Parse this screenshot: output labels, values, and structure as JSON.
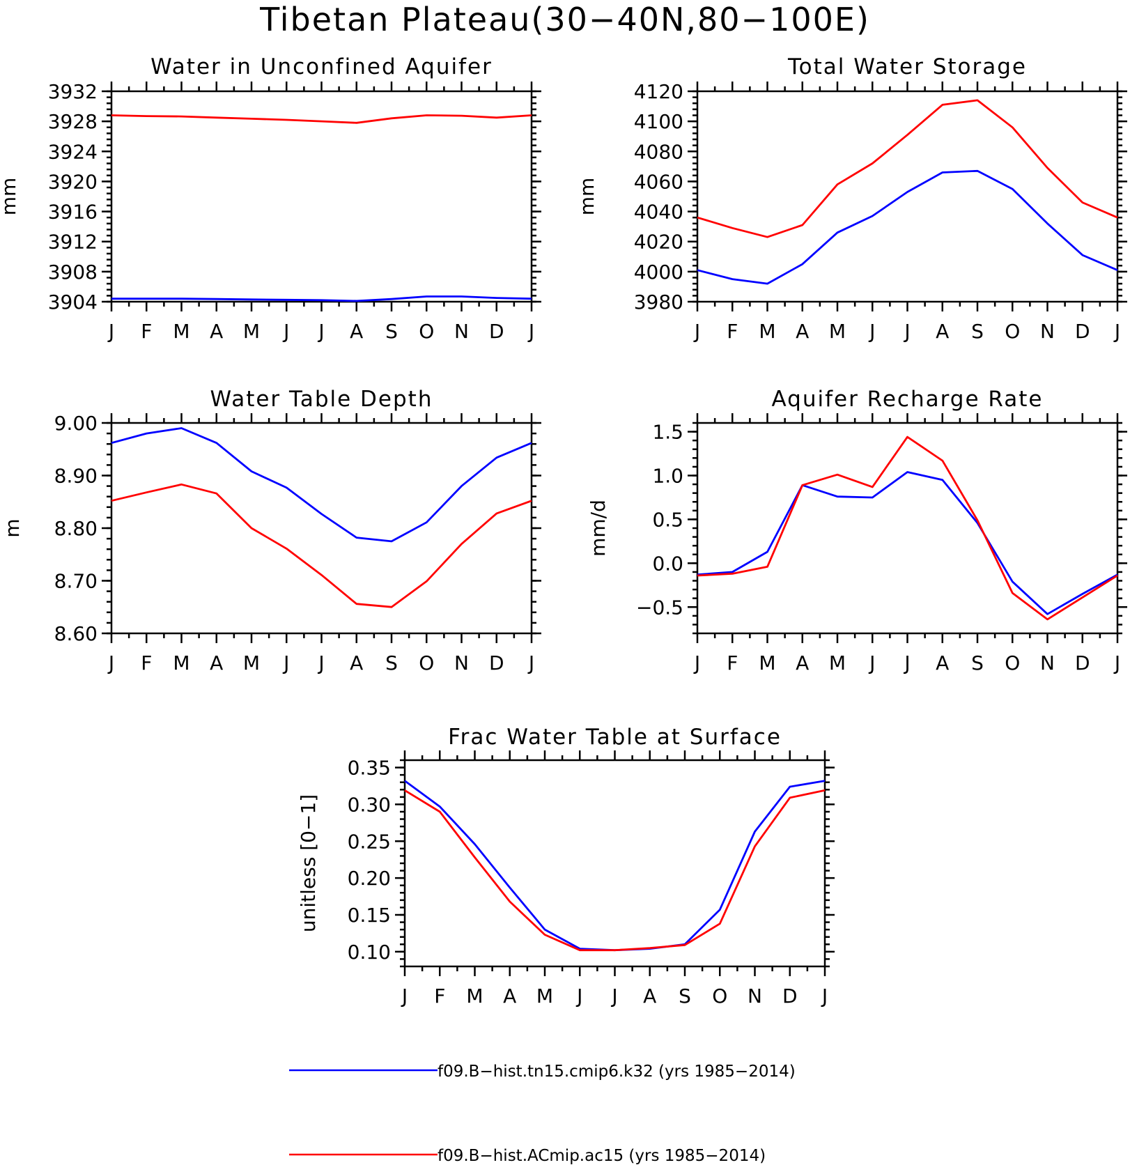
{
  "figure": {
    "title": "Tibetan Plateau(30−40N,80−100E)",
    "series_colors": {
      "blue": "#0000ff",
      "red": "#ff0000"
    }
  },
  "legend": {
    "items": [
      {
        "label": "f09.B−hist.tn15.cmip6.k32 (yrs 1985−2014)",
        "color": "#0000ff"
      },
      {
        "label": "f09.B−hist.ACmip.ac15 (yrs 1985−2014)",
        "color": "#ff0000"
      }
    ]
  },
  "chart_data": [
    {
      "type": "line",
      "title": "Water in Unconfined Aquifer",
      "ylabel": "mm",
      "xlabel": "",
      "x": [
        "J",
        "F",
        "M",
        "A",
        "M",
        "J",
        "J",
        "A",
        "S",
        "O",
        "N",
        "D",
        "J"
      ],
      "ylim": [
        3904,
        3932
      ],
      "yticks": [
        3904,
        3908,
        3912,
        3916,
        3920,
        3924,
        3928,
        3932
      ],
      "yticklabels": [
        "3904",
        "3908",
        "3912",
        "3916",
        "3920",
        "3924",
        "3928",
        "3932"
      ],
      "series": [
        {
          "color": "#0000ff",
          "values": [
            3904.4,
            3904.4,
            3904.4,
            3904.35,
            3904.3,
            3904.25,
            3904.2,
            3904.1,
            3904.35,
            3904.7,
            3904.7,
            3904.5,
            3904.4
          ]
        },
        {
          "color": "#ff0000",
          "values": [
            3928.8,
            3928.7,
            3928.65,
            3928.5,
            3928.35,
            3928.2,
            3928.0,
            3927.8,
            3928.4,
            3928.8,
            3928.75,
            3928.5,
            3928.8
          ]
        }
      ]
    },
    {
      "type": "line",
      "title": "Total Water Storage",
      "ylabel": "mm",
      "xlabel": "",
      "x": [
        "J",
        "F",
        "M",
        "A",
        "M",
        "J",
        "J",
        "A",
        "S",
        "O",
        "N",
        "D",
        "J"
      ],
      "ylim": [
        3980,
        4120
      ],
      "yticks": [
        3980,
        4000,
        4020,
        4040,
        4060,
        4080,
        4100,
        4120
      ],
      "yticklabels": [
        "3980",
        "4000",
        "4020",
        "4040",
        "4060",
        "4080",
        "4100",
        "4120"
      ],
      "series": [
        {
          "color": "#0000ff",
          "values": [
            4001,
            3995,
            3992,
            4005,
            4026,
            4037,
            4053,
            4066,
            4067,
            4055,
            4032,
            4011,
            4001
          ]
        },
        {
          "color": "#ff0000",
          "values": [
            4036,
            4029,
            4023,
            4031,
            4058,
            4072,
            4091,
            4111,
            4114,
            4096,
            4069,
            4046,
            4036
          ]
        }
      ]
    },
    {
      "type": "line",
      "title": "Water Table Depth",
      "ylabel": "m",
      "xlabel": "",
      "x": [
        "J",
        "F",
        "M",
        "A",
        "M",
        "J",
        "J",
        "A",
        "S",
        "O",
        "N",
        "D",
        "J"
      ],
      "ylim": [
        8.6,
        9.0
      ],
      "yticks": [
        8.6,
        8.7,
        8.8,
        8.9,
        9.0
      ],
      "yticklabels": [
        "8.60",
        "8.70",
        "8.80",
        "8.90",
        "9.00"
      ],
      "series": [
        {
          "color": "#0000ff",
          "values": [
            8.962,
            8.98,
            8.99,
            8.962,
            8.908,
            8.877,
            8.827,
            8.782,
            8.775,
            8.811,
            8.88,
            8.934,
            8.962
          ]
        },
        {
          "color": "#ff0000",
          "values": [
            8.852,
            8.868,
            8.883,
            8.866,
            8.8,
            8.761,
            8.711,
            8.656,
            8.65,
            8.699,
            8.77,
            8.828,
            8.852
          ]
        }
      ]
    },
    {
      "type": "line",
      "title": "Aquifer Recharge Rate",
      "ylabel": "mm/d",
      "xlabel": "",
      "x": [
        "J",
        "F",
        "M",
        "A",
        "M",
        "J",
        "J",
        "A",
        "S",
        "O",
        "N",
        "D",
        "J"
      ],
      "ylim": [
        -0.8,
        1.6
      ],
      "yticks": [
        -0.5,
        0.0,
        0.5,
        1.0,
        1.5
      ],
      "yticklabels": [
        "−0.5",
        "0.0",
        "0.5",
        "1.0",
        "1.5"
      ],
      "series": [
        {
          "color": "#0000ff",
          "values": [
            -0.13,
            -0.1,
            0.13,
            0.89,
            0.76,
            0.75,
            1.04,
            0.95,
            0.46,
            -0.21,
            -0.58,
            -0.35,
            -0.13
          ]
        },
        {
          "color": "#ff0000",
          "values": [
            -0.14,
            -0.12,
            -0.04,
            0.89,
            1.01,
            0.87,
            1.44,
            1.17,
            0.49,
            -0.34,
            -0.64,
            -0.39,
            -0.14
          ]
        }
      ]
    },
    {
      "type": "line",
      "title": "Frac Water Table at Surface",
      "ylabel": "unitless [0−1]",
      "xlabel": "",
      "x": [
        "J",
        "F",
        "M",
        "A",
        "M",
        "J",
        "J",
        "A",
        "S",
        "O",
        "N",
        "D",
        "J"
      ],
      "ylim": [
        0.08,
        0.36
      ],
      "yticks": [
        0.1,
        0.15,
        0.2,
        0.25,
        0.3,
        0.35
      ],
      "yticklabels": [
        "0.10",
        "0.15",
        "0.20",
        "0.25",
        "0.30",
        "0.35"
      ],
      "series": [
        {
          "color": "#0000ff",
          "values": [
            0.332,
            0.297,
            0.246,
            0.187,
            0.13,
            0.104,
            0.102,
            0.104,
            0.11,
            0.157,
            0.263,
            0.324,
            0.332
          ]
        },
        {
          "color": "#ff0000",
          "values": [
            0.319,
            0.29,
            0.228,
            0.168,
            0.123,
            0.102,
            0.102,
            0.105,
            0.109,
            0.138,
            0.243,
            0.309,
            0.319
          ]
        }
      ]
    }
  ]
}
